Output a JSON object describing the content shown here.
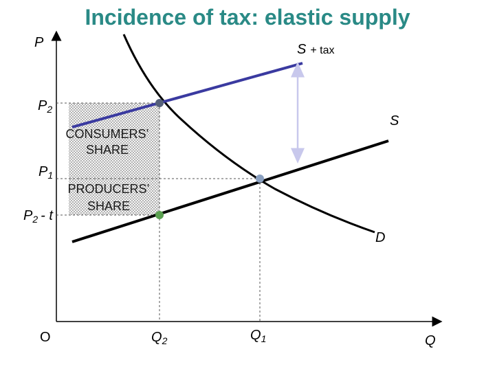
{
  "title": "Incidence of tax:  elastic supply",
  "axes": {
    "y": "P",
    "x": "Q",
    "origin": "O"
  },
  "price_labels": [
    {
      "symbol": "P",
      "subscript": "2"
    },
    {
      "symbol": "P",
      "subscript": "1"
    },
    {
      "symbol": "P",
      "subscript": "2",
      "suffix": "- t"
    }
  ],
  "quantity_labels": [
    {
      "symbol": "Q",
      "subscript": "2"
    },
    {
      "symbol": "Q",
      "subscript": "1"
    }
  ],
  "curves": {
    "supply_tax": {
      "label": "S",
      "suffix": "+ tax"
    },
    "supply": "S",
    "demand": "D"
  },
  "areas": {
    "consumers": [
      "CONSUMERS’",
      "SHARE"
    ],
    "producers": [
      "PRODUCERS’",
      "SHARE"
    ]
  }
}
